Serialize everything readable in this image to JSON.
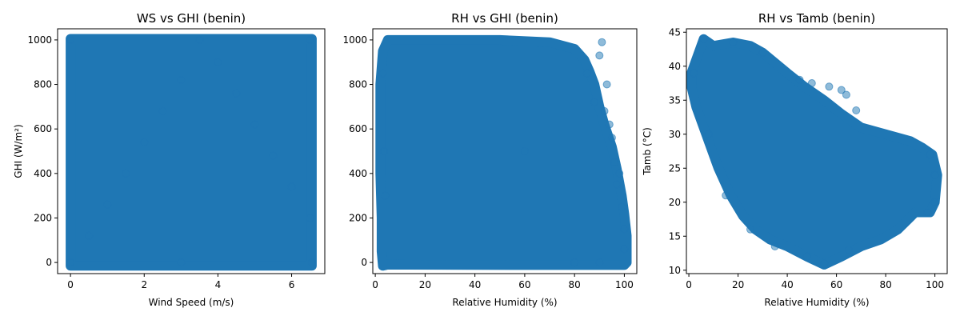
{
  "chart_data": [
    {
      "type": "scatter",
      "title": "WS vs GHI (benin)",
      "xlabel": "Wind Speed (m/s)",
      "ylabel": "GHI (W/m²)",
      "xlim": [
        -0.35,
        6.9
      ],
      "ylim": [
        -50,
        1050
      ],
      "xticks": [
        0,
        2,
        4,
        6
      ],
      "yticks": [
        0,
        200,
        400,
        600,
        800,
        1000
      ],
      "color": "#1f77b4",
      "grid": false,
      "points": [
        [
          0,
          0
        ],
        [
          0.5,
          120
        ],
        [
          1,
          260
        ],
        [
          1.5,
          400
        ],
        [
          2,
          540
        ],
        [
          2.5,
          680
        ],
        [
          3,
          820
        ],
        [
          3.5,
          1000
        ],
        [
          4,
          900
        ],
        [
          4.5,
          760
        ],
        [
          5,
          620
        ],
        [
          5.5,
          480
        ],
        [
          6,
          340
        ],
        [
          6.5,
          200
        ],
        [
          6.55,
          0
        ],
        [
          6.5,
          1000
        ],
        [
          0,
          1000
        ],
        [
          3,
          0
        ]
      ],
      "regions": [
        {
          "polygon": [
            [
              0,
              -15
            ],
            [
              6.55,
              -15
            ],
            [
              6.55,
              1005
            ],
            [
              0,
              1005
            ]
          ]
        }
      ]
    },
    {
      "type": "scatter",
      "title": "RH vs GHI (benin)",
      "xlabel": "Relative Humidity (%)",
      "ylabel": "",
      "xlim": [
        -1,
        105
      ],
      "ylim": [
        -50,
        1050
      ],
      "xticks": [
        0,
        20,
        40,
        60,
        80,
        100
      ],
      "yticks": [
        0,
        200,
        400,
        600,
        800,
        1000
      ],
      "color": "#1f77b4",
      "grid": false,
      "points": [
        [
          3,
          850
        ],
        [
          3.5,
          500
        ],
        [
          4,
          300
        ],
        [
          85,
          850
        ],
        [
          88,
          720
        ],
        [
          90,
          930
        ],
        [
          92,
          680
        ],
        [
          93,
          800
        ],
        [
          95,
          560
        ],
        [
          96,
          450
        ],
        [
          98,
          400
        ],
        [
          100,
          150
        ],
        [
          100,
          60
        ],
        [
          99,
          250
        ],
        [
          97,
          350
        ],
        [
          91,
          990
        ],
        [
          94,
          620
        ],
        [
          90,
          0
        ],
        [
          80,
          0
        ],
        [
          60,
          500
        ]
      ],
      "regions": [
        {
          "polygon": [
            [
              3,
              -15
            ],
            [
              5,
              -10
            ],
            [
              60,
              -12
            ],
            [
              100,
              -12
            ],
            [
              101,
              0
            ],
            [
              101,
              120
            ],
            [
              100,
              220
            ],
            [
              99,
              300
            ],
            [
              97,
              420
            ],
            [
              95,
              520
            ],
            [
              92,
              620
            ],
            [
              90,
              700
            ],
            [
              88,
              800
            ],
            [
              86,
              860
            ],
            [
              84,
              910
            ],
            [
              80,
              960
            ],
            [
              70,
              990
            ],
            [
              50,
              1000
            ],
            [
              5,
              1000
            ],
            [
              3,
              950
            ],
            [
              2,
              800
            ],
            [
              2,
              400
            ],
            [
              2.5,
              200
            ],
            [
              2.5,
              50
            ]
          ]
        }
      ]
    },
    {
      "type": "scatter",
      "title": "RH vs Tamb (benin)",
      "xlabel": "Relative Humidity (%)",
      "ylabel": "Tamb (°C)",
      "xlim": [
        -1,
        105
      ],
      "ylim": [
        9.5,
        45.5
      ],
      "xticks": [
        0,
        20,
        40,
        60,
        80,
        100
      ],
      "yticks": [
        10,
        15,
        20,
        25,
        30,
        35,
        40,
        45
      ],
      "color": "#1f77b4",
      "grid": false,
      "points": [
        [
          6,
          44
        ],
        [
          18,
          43.5
        ],
        [
          30,
          42
        ],
        [
          45,
          38
        ],
        [
          50,
          37.5
        ],
        [
          57,
          37
        ],
        [
          62,
          36.5
        ],
        [
          64,
          35.8
        ],
        [
          68,
          33.5
        ],
        [
          2,
          39
        ],
        [
          100,
          24
        ],
        [
          98,
          27
        ],
        [
          100,
          20
        ],
        [
          97,
          18.5
        ],
        [
          65,
          13
        ],
        [
          55,
          11
        ],
        [
          48,
          12
        ],
        [
          35,
          13.5
        ],
        [
          25,
          16
        ],
        [
          15,
          21
        ],
        [
          8,
          30
        ]
      ],
      "regions": [
        {
          "polygon": [
            [
              1,
              39
            ],
            [
              3,
              41
            ],
            [
              6,
              44
            ],
            [
              10,
              43
            ],
            [
              18,
              43.5
            ],
            [
              25,
              43
            ],
            [
              30,
              42
            ],
            [
              40,
              39
            ],
            [
              47,
              37
            ],
            [
              55,
              35
            ],
            [
              62,
              33
            ],
            [
              70,
              31
            ],
            [
              80,
              30
            ],
            [
              90,
              29
            ],
            [
              95,
              28
            ],
            [
              99,
              27
            ],
            [
              101,
              24
            ],
            [
              100,
              20
            ],
            [
              98,
              18.5
            ],
            [
              92,
              18.5
            ],
            [
              85,
              16
            ],
            [
              78,
              14.5
            ],
            [
              70,
              13.5
            ],
            [
              62,
              12
            ],
            [
              55,
              10.8
            ],
            [
              48,
              12
            ],
            [
              40,
              13.5
            ],
            [
              33,
              14.5
            ],
            [
              27,
              16
            ],
            [
              22,
              18
            ],
            [
              17,
              21
            ],
            [
              12,
              25
            ],
            [
              7,
              30
            ],
            [
              3,
              34
            ],
            [
              1,
              37
            ]
          ]
        }
      ]
    }
  ]
}
